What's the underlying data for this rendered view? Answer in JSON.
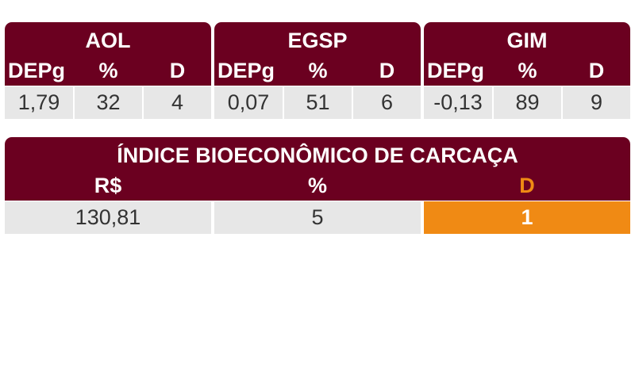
{
  "colors": {
    "header_bg": "#6b0020",
    "cell_bg": "#e7e7e7",
    "accent": "#f08a14",
    "text_dark": "#333333",
    "text_light": "#ffffff"
  },
  "traits": [
    {
      "title": "AOL",
      "cols": [
        "DEPg",
        "%",
        "D"
      ],
      "values": [
        "1,79",
        "32",
        "4"
      ]
    },
    {
      "title": "EGSP",
      "cols": [
        "DEPg",
        "%",
        "D"
      ],
      "values": [
        "0,07",
        "51",
        "6"
      ]
    },
    {
      "title": "GIM",
      "cols": [
        "DEPg",
        "%",
        "D"
      ],
      "values": [
        "-0,13",
        "89",
        "9"
      ]
    }
  ],
  "index": {
    "title": "ÍNDICE BIOECONÔMICO DE CARCAÇA",
    "cols": [
      "R$",
      "%",
      "D"
    ],
    "values": [
      "130,81",
      "5",
      "1"
    ]
  }
}
